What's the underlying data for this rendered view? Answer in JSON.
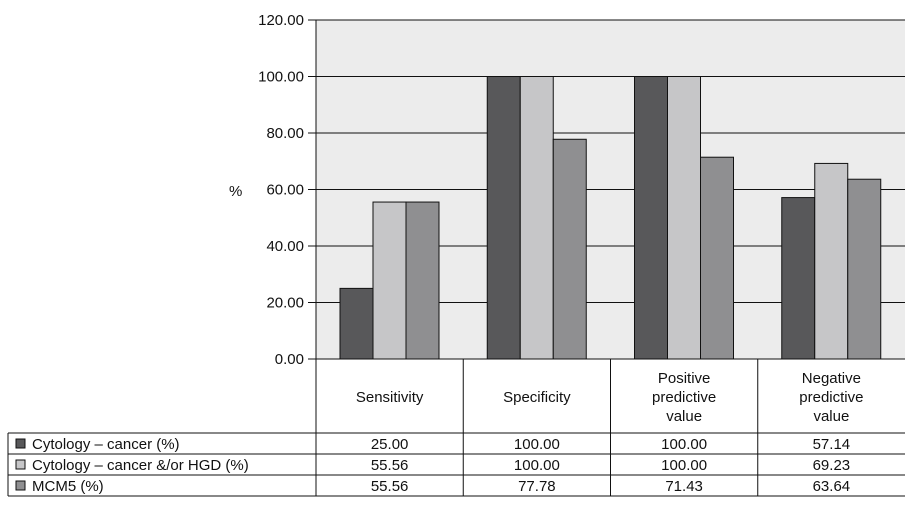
{
  "chart_data": {
    "type": "bar",
    "title": "",
    "xlabel": "",
    "ylabel": "%",
    "ylim": [
      0,
      120
    ],
    "yticks": [
      "0.00",
      "20.00",
      "40.00",
      "60.00",
      "80.00",
      "100.00",
      "120.00"
    ],
    "categories": [
      [
        "Sensitivity"
      ],
      [
        "Specificity"
      ],
      [
        "Positive",
        "predictive",
        "value"
      ],
      [
        "Negative",
        "predictive",
        "value"
      ]
    ],
    "series": [
      {
        "name": "Cytology – cancer (%)",
        "color": "#58585a",
        "values": [
          25.0,
          100.0,
          100.0,
          57.14
        ],
        "labels": [
          "25.00",
          "100.00",
          "100.00",
          "57.14"
        ]
      },
      {
        "name": "Cytology – cancer &/or HGD (%)",
        "color": "#c6c6c8",
        "values": [
          55.56,
          100.0,
          100.0,
          69.23
        ],
        "labels": [
          "55.56",
          "100.00",
          "100.00",
          "69.23"
        ]
      },
      {
        "name": "MCM5 (%)",
        "color": "#8f8f91",
        "values": [
          55.56,
          77.78,
          71.43,
          63.64
        ],
        "labels": [
          "55.56",
          "77.78",
          "71.43",
          "63.64"
        ]
      }
    ],
    "plot_background": "#ececec",
    "grid": true,
    "legend": "data-table"
  }
}
